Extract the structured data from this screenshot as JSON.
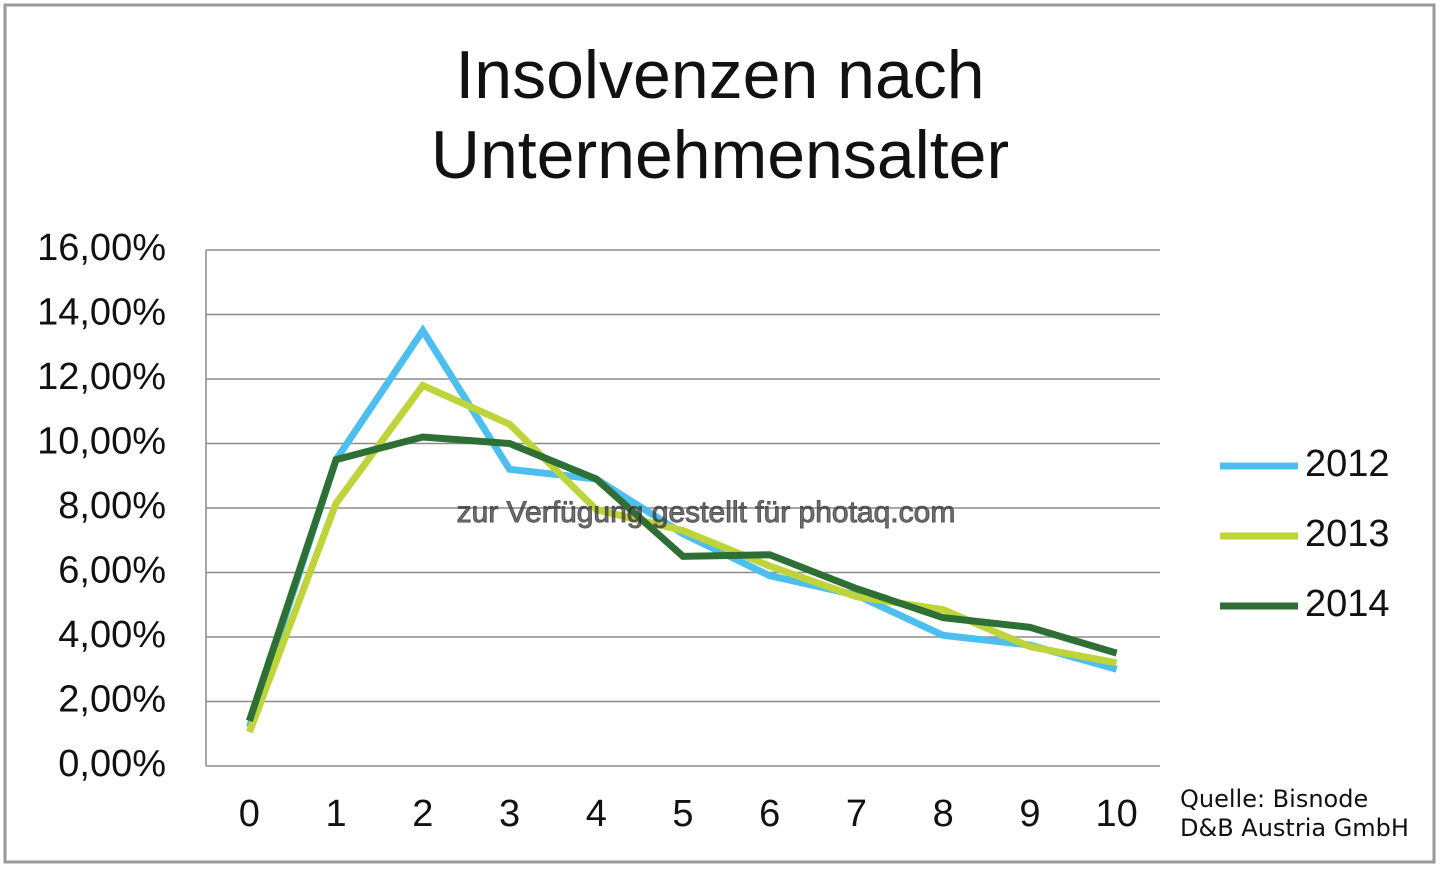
{
  "chart_data": {
    "type": "line",
    "title": [
      "Insolvenzen nach",
      "Unternehmensalter"
    ],
    "categories": [
      "0",
      "1",
      "2",
      "3",
      "4",
      "5",
      "6",
      "7",
      "8",
      "9",
      "10"
    ],
    "series": [
      {
        "name": "2012",
        "color": "#4dbfee",
        "values": [
          1.2,
          9.5,
          13.5,
          9.2,
          8.9,
          7.2,
          5.9,
          5.3,
          4.05,
          3.75,
          3.0
        ]
      },
      {
        "name": "2013",
        "color": "#bfd43b",
        "values": [
          1.05,
          8.15,
          11.8,
          10.6,
          7.95,
          7.3,
          6.2,
          5.25,
          4.85,
          3.7,
          3.2
        ]
      },
      {
        "name": "2014",
        "color": "#2e6f35",
        "values": [
          1.4,
          9.5,
          10.2,
          10.0,
          8.9,
          6.5,
          6.55,
          5.5,
          4.6,
          4.3,
          3.5
        ]
      }
    ],
    "ylim": [
      0,
      16
    ],
    "yticks": [
      {
        "value": 0,
        "label": "0,00%"
      },
      {
        "value": 2,
        "label": "2,00%"
      },
      {
        "value": 4,
        "label": "4,00%"
      },
      {
        "value": 6,
        "label": "6,00%"
      },
      {
        "value": 8,
        "label": "8,00%"
      },
      {
        "value": 10,
        "label": "10,00%"
      },
      {
        "value": 12,
        "label": "12,00%"
      },
      {
        "value": 14,
        "label": "14,00%"
      },
      {
        "value": 16,
        "label": "16,00%"
      }
    ],
    "grid": true,
    "legend": "right",
    "source": [
      "Quelle: Bisnode",
      "D&B Austria GmbH"
    ],
    "watermark": "zur Verfügung gestellt für photaq.com"
  }
}
